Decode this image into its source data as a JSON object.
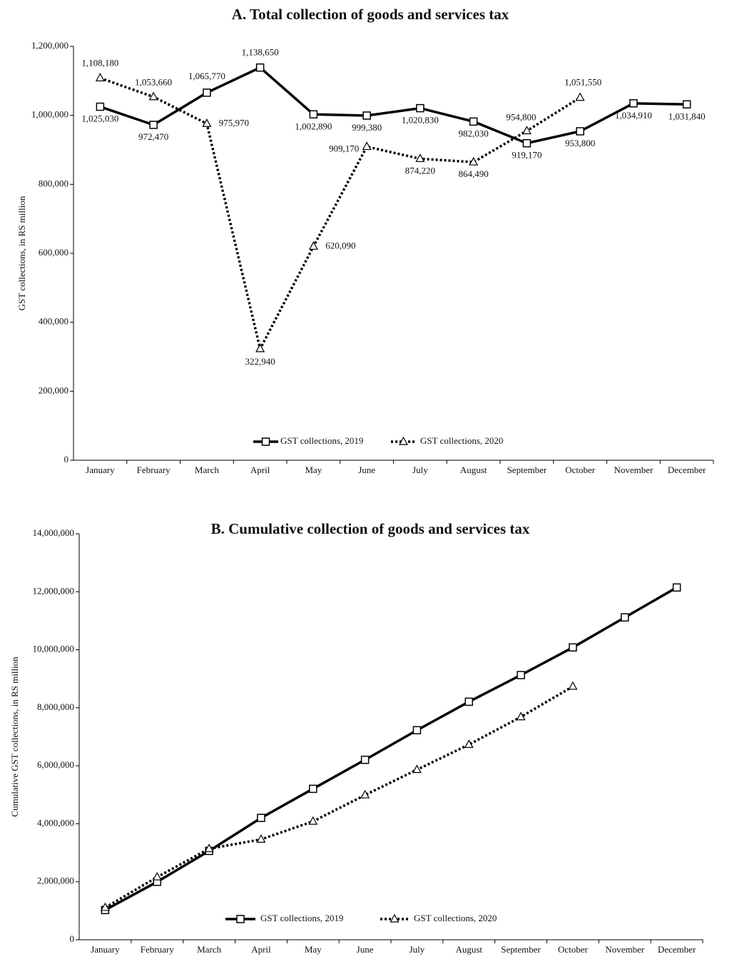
{
  "chart_data": [
    {
      "type": "line",
      "title": "A. Total collection of goods and services tax",
      "y_label": "GST collections, in RS million",
      "categories": [
        "January",
        "February",
        "March",
        "April",
        "May",
        "June",
        "July",
        "August",
        "September",
        "October",
        "November",
        "December"
      ],
      "series": [
        {
          "name": "GST collections, 2019",
          "color": "#000000",
          "style": "solid",
          "marker": "square",
          "values": [
            1025030,
            972470,
            1065770,
            1138650,
            1002890,
            999380,
            1020830,
            982030,
            919170,
            953800,
            1034910,
            1031840
          ],
          "value_labels": [
            "1,025,030",
            "972,470",
            "1,065,770",
            "1,138,650",
            "1,002,890",
            "999,380",
            "1,020,830",
            "982,030",
            "919,170",
            "953,800",
            "1,034,910",
            "1,031,840"
          ]
        },
        {
          "name": "GST collections, 2020",
          "color": "#000000",
          "style": "dotted",
          "marker": "triangle",
          "values": [
            1108180,
            1053660,
            975970,
            322940,
            620090,
            909170,
            874220,
            864490,
            954800,
            1051550,
            null,
            null
          ],
          "value_labels": [
            "1,108,180",
            "1,053,660",
            "975,970",
            "322,940",
            "620,090",
            "909,170",
            "874,220",
            "864,490",
            "954,800",
            "1,051,550",
            null,
            null
          ]
        }
      ],
      "ylim": [
        0,
        1200000
      ],
      "yticks": [
        0,
        {
          "value": 200000,
          "label": "200,000"
        },
        {
          "value": 400000,
          "label": "400,000"
        },
        {
          "value": 600000,
          "label": "600,000"
        },
        {
          "value": 800000,
          "label": "800,000"
        },
        {
          "value": 1000000,
          "label": "1,000,000"
        },
        {
          "value": 1200000,
          "label": "1,200,000"
        }
      ],
      "legend": "bottom"
    },
    {
      "type": "line",
      "title": "B. Cumulative collection of goods and services tax",
      "y_label": "Cumulative GST collections, in RS million",
      "categories": [
        "January",
        "February",
        "March",
        "April",
        "May",
        "June",
        "July",
        "August",
        "September",
        "October",
        "November",
        "December"
      ],
      "series": [
        {
          "name": "GST collections, 2019",
          "color": "#000000",
          "style": "solid",
          "marker": "square",
          "values": [
            1025030,
            1997500,
            3063270,
            4201920,
            5204810,
            6204190,
            7225020,
            8207050,
            9126220,
            10080020,
            11114930,
            12146770
          ]
        },
        {
          "name": "GST collections, 2020",
          "color": "#000000",
          "style": "dotted",
          "marker": "triangle",
          "values": [
            1108180,
            2161840,
            3137810,
            3460750,
            4080840,
            4990010,
            5864230,
            6728720,
            7683520,
            8735070,
            null,
            null
          ]
        }
      ],
      "ylim": [
        0,
        14000000
      ],
      "yticks": [
        0,
        {
          "value": 2000000,
          "label": "2,000,000"
        },
        {
          "value": 4000000,
          "label": "4,000,000"
        },
        {
          "value": 6000000,
          "label": "6,000,000"
        },
        {
          "value": 8000000,
          "label": "8,000,000"
        },
        {
          "value": 10000000,
          "label": "10,000,000"
        },
        {
          "value": 12000000,
          "label": "12,000,000"
        },
        {
          "value": 14000000,
          "label": "14,000,000"
        }
      ],
      "legend": "bottom"
    }
  ]
}
